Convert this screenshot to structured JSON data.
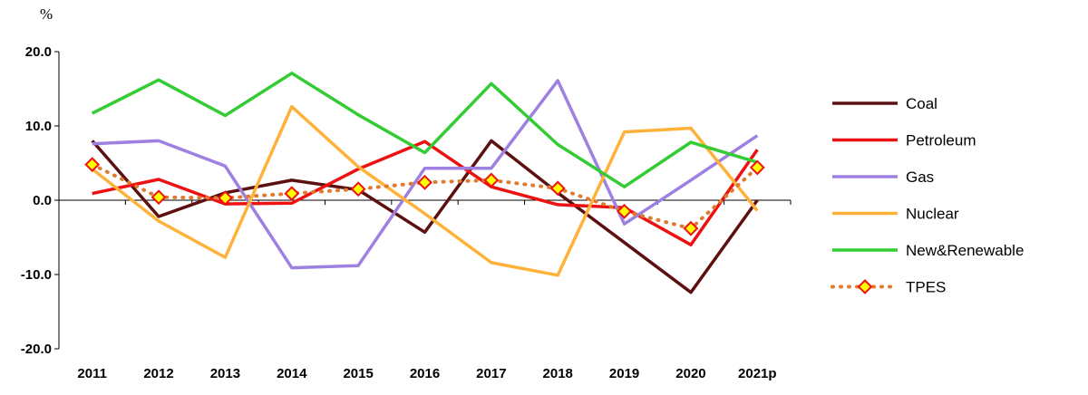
{
  "chart_data": {
    "type": "line",
    "unit_label": "%",
    "categories": [
      "2011",
      "2012",
      "2013",
      "2014",
      "2015",
      "2016",
      "2017",
      "2018",
      "2019",
      "2020",
      "2021p"
    ],
    "ylim": [
      -20,
      20
    ],
    "yticks": [
      "20.0",
      "10.0",
      "0.0",
      "-10.0",
      "-20.0"
    ],
    "ytick_values": [
      20,
      10,
      0,
      -10,
      -20
    ],
    "grid": false,
    "legend_position": "right",
    "series": [
      {
        "name": "Coal",
        "color": "#5c1010",
        "style": "solid",
        "values": [
          8.0,
          -2.2,
          1.0,
          2.7,
          1.4,
          -4.3,
          8.0,
          1.0,
          -5.7,
          -12.4,
          0.0
        ]
      },
      {
        "name": "Petroleum",
        "color": "#ee1111",
        "style": "solid",
        "values": [
          0.9,
          2.8,
          -0.5,
          -0.4,
          4.2,
          7.9,
          1.8,
          -0.6,
          -1.0,
          -6.0,
          6.8
        ]
      },
      {
        "name": "Gas",
        "color": "#9e80e0",
        "style": "solid",
        "values": [
          7.6,
          8.0,
          4.6,
          -9.1,
          -8.8,
          4.3,
          4.3,
          16.1,
          -3.2,
          2.7,
          8.7
        ]
      },
      {
        "name": "Nuclear",
        "color": "#ffb23a",
        "style": "solid",
        "values": [
          4.2,
          -2.8,
          -7.7,
          12.6,
          4.5,
          -1.8,
          -8.4,
          -10.1,
          9.2,
          9.7,
          -1.4
        ]
      },
      {
        "name": "New&Renewable",
        "color": "#33cc33",
        "style": "solid",
        "values": [
          11.7,
          16.2,
          11.4,
          17.1,
          11.5,
          6.4,
          15.7,
          7.5,
          1.8,
          7.8,
          5.1
        ]
      },
      {
        "name": "TPES",
        "color": "#e07a30",
        "style": "dotted",
        "marker_fill": "#ffff00",
        "marker_stroke": "#ee1111",
        "values": [
          4.8,
          0.4,
          0.3,
          0.9,
          1.5,
          2.4,
          2.7,
          1.6,
          -1.5,
          -3.8,
          4.4
        ]
      }
    ]
  }
}
